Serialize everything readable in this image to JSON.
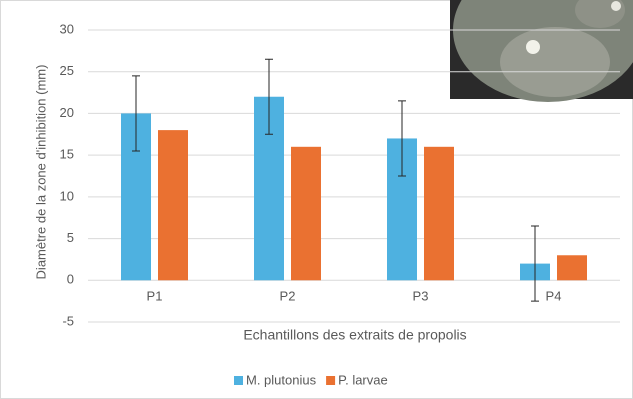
{
  "chart_data": {
    "type": "bar",
    "y_axis_label": "Diamètre de la zone d'inhibition (mm)",
    "x_axis_label": "Echantillons des extraits de propolis",
    "categories": [
      "P1",
      "P2",
      "P3",
      "P4"
    ],
    "series": [
      {
        "name": "M. plutonius",
        "color": "#4eb1e0",
        "values": [
          20,
          22,
          17,
          2
        ],
        "errors": [
          4.5,
          4.5,
          4.5,
          4.5
        ]
      },
      {
        "name": "P. larvae",
        "color": "#ea7131",
        "values": [
          18,
          16,
          16,
          3
        ]
      }
    ],
    "ylim": [
      -5,
      30
    ],
    "yticks": [
      -5,
      0,
      5,
      10,
      15,
      20,
      25,
      30
    ],
    "grid": true,
    "legend": "bottom"
  }
}
